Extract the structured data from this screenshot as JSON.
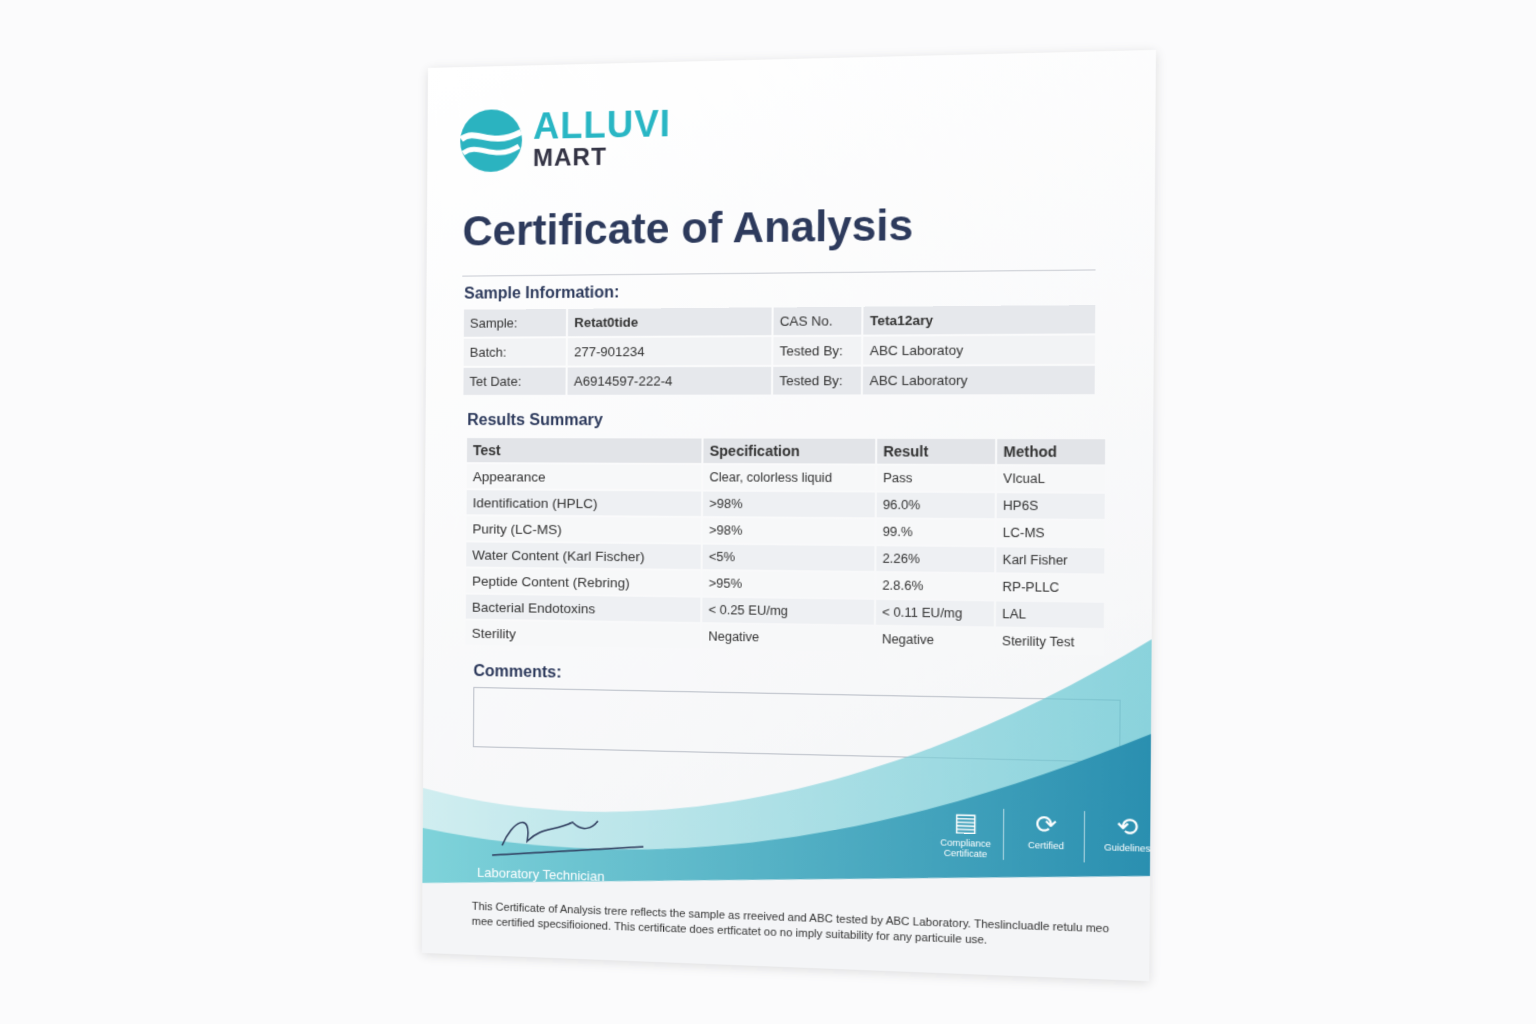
{
  "brand": {
    "line1": "ALLUVI",
    "line2": "MART",
    "colors": {
      "teal": "#29b6c4",
      "navy": "#2d3a5c"
    }
  },
  "title": "Certificate of Analysis",
  "sample_info": {
    "heading": "Sample Information:",
    "rows": [
      {
        "label1": "Sample:",
        "value1": "Retat0tide",
        "label2": "CAS No.",
        "value2": "Teta12ary"
      },
      {
        "label1": "Batch:",
        "value1": "277-901234",
        "label2": "Tested By:",
        "value2": "ABC Laboratoy"
      },
      {
        "label1": "Tet Date:",
        "value1": "A6914597-222-4",
        "label2": "Tested By:",
        "value2": "ABC Laboratory"
      }
    ]
  },
  "results": {
    "heading": "Results Summary",
    "columns": [
      "Test",
      "Specification",
      "Result",
      "Method"
    ],
    "rows": [
      [
        "Appearance",
        "Clear, colorless liquid",
        "Pass",
        "VIcuaL"
      ],
      [
        "Identification (HPLC)",
        ">98%",
        "96.0%",
        "HP6S"
      ],
      [
        "Purity (LC-MS)",
        ">98%",
        "99.%",
        "LC-MS"
      ],
      [
        "Water Content (Karl Fischer)",
        "<5%",
        "2.26%",
        "Karl Fisher"
      ],
      [
        "Peptide Content (Rebring)",
        ">95%",
        "2.8.6%",
        "RP-PLLC"
      ],
      [
        "Bacterial Endotoxins",
        "< 0.25 EU/mg",
        "< 0.11 EU/mg",
        "LAL"
      ],
      [
        "Sterility",
        "Negative",
        "Negative",
        "Sterility Test"
      ]
    ]
  },
  "comments": {
    "heading": "Comments:",
    "value": ""
  },
  "signature": {
    "label": "Laboratory Technician"
  },
  "badges": [
    {
      "icon": "chart-board-icon",
      "label": "Compliance Certificate"
    },
    {
      "icon": "certified-icon",
      "label": "Certified"
    },
    {
      "icon": "guidelines-icon",
      "label": "Guidelines"
    }
  ],
  "disclaimer": "This Certificate of Analysis trere reflects the sample as rreeived and ABC tested by ABC Laboratory. Theslincluadle retulu meo mee certified specsifioioned. This certificate does ertficatet oo no imply suitability for any particuile use."
}
